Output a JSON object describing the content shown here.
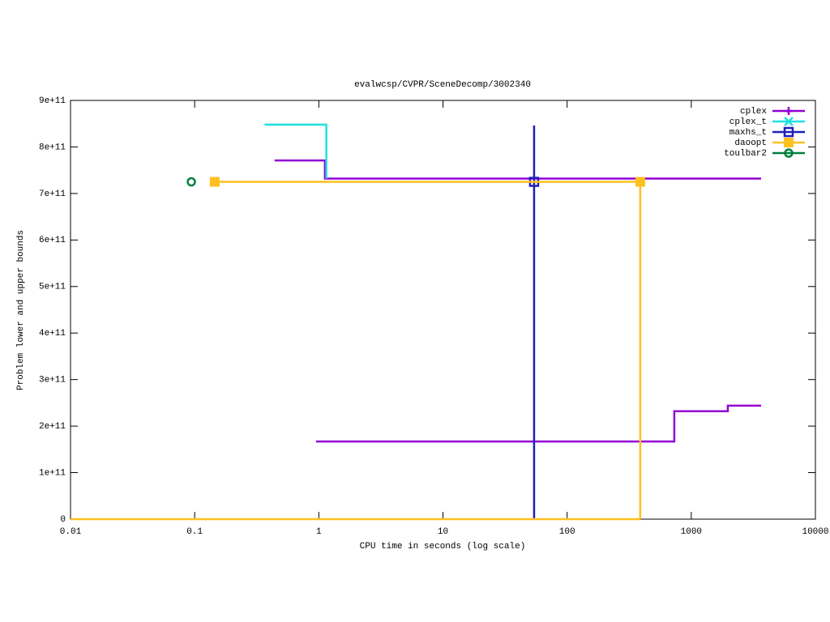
{
  "chart_data": {
    "type": "line",
    "title": "evalwcsp/CVPR/SceneDecomp/3002340",
    "x_label": "CPU time in seconds (log scale)",
    "y_label": "Problem lower and upper bounds",
    "x_log": true,
    "legend": "top-right",
    "xlim": [
      0.01,
      10000
    ],
    "xticks": [
      0.01,
      0.1,
      1,
      10,
      100,
      1000,
      10000
    ],
    "ylim": [
      0,
      900000000000
    ],
    "yticks": [
      0,
      {
        "value": 100000000000,
        "label": "1e+11"
      },
      {
        "value": 200000000000,
        "label": "2e+11"
      },
      {
        "value": 300000000000,
        "label": "3e+11"
      },
      {
        "value": 400000000000,
        "label": "4e+11"
      },
      {
        "value": 500000000000,
        "label": "5e+11"
      },
      {
        "value": 600000000000,
        "label": "6e+11"
      },
      {
        "value": 700000000000,
        "label": "7e+11"
      },
      {
        "value": 800000000000,
        "label": "8e+11"
      },
      {
        "value": 900000000000,
        "label": "9e+11"
      }
    ],
    "series": [
      {
        "name": "cplex",
        "color": "#9400d3",
        "marker": "plus",
        "x": [
          0.44,
          1.12,
          1.12,
          3650,
          null,
          0.95,
          730,
          730,
          1970,
          1970,
          3650
        ],
        "values": [
          771000000000,
          771000000000,
          732000000000,
          732000000000,
          null,
          167000000000,
          167000000000,
          232000000000,
          232000000000,
          244000000000,
          244000000000
        ],
        "marker_x": [],
        "marker_values": []
      },
      {
        "name": "cplex_t",
        "color": "#20e0e0",
        "marker": "cross",
        "x": [
          0.365,
          1.15,
          1.15
        ],
        "values": [
          848000000000,
          848000000000,
          732000000000
        ],
        "marker_x": [],
        "marker_values": []
      },
      {
        "name": "maxhs_t",
        "color": "#2020b8",
        "marker": "square",
        "x": [
          54.2,
          54.2
        ],
        "values": [
          846000000000,
          0
        ],
        "marker_x": [
          54.2
        ],
        "marker_values": [
          725000000000
        ]
      },
      {
        "name": "daoopt",
        "color": "#ffc020",
        "marker": "filled-square",
        "x": [
          0.145,
          388,
          388,
          null,
          0.01,
          388
        ],
        "values": [
          725000000000,
          725000000000,
          0,
          null,
          0,
          0
        ],
        "marker_x": [
          0.145,
          388
        ],
        "marker_values": [
          725000000000,
          725000000000
        ]
      },
      {
        "name": "toulbar2",
        "color": "#008040",
        "marker": "circle",
        "x": [
          0.094
        ],
        "values": [
          725000000000
        ],
        "marker_x": [
          0.094
        ],
        "marker_values": [
          725000000000
        ]
      }
    ]
  }
}
